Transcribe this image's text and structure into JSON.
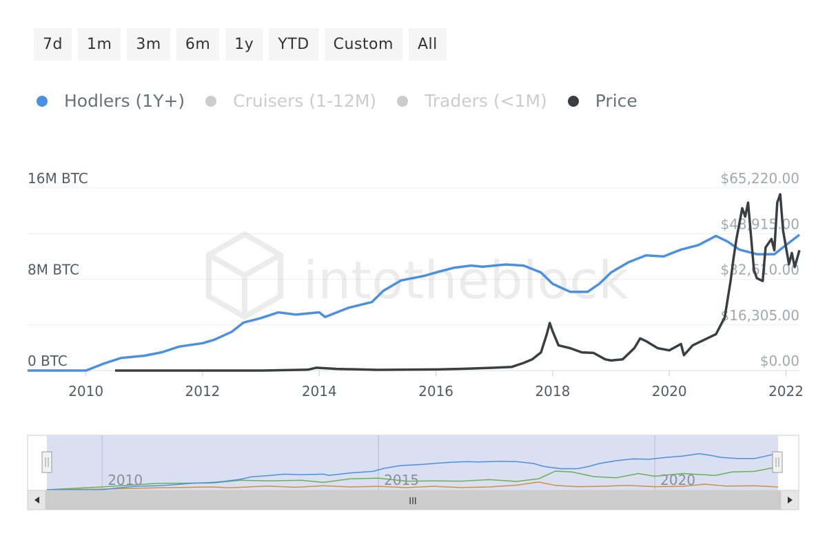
{
  "range_buttons": [
    "7d",
    "1m",
    "3m",
    "6m",
    "1y",
    "YTD",
    "Custom",
    "All"
  ],
  "legend": [
    {
      "label": "Hodlers (1Y+)",
      "color": "#4a90e2",
      "active": true
    },
    {
      "label": "Cruisers (1-12M)",
      "color": "#cccccc",
      "active": false
    },
    {
      "label": "Traders (<1M)",
      "color": "#cccccc",
      "active": false
    },
    {
      "label": "Price",
      "color": "#3a3d41",
      "active": true
    }
  ],
  "watermark": "intotheblock",
  "navigator": {
    "x_ticks": [
      "2010",
      "2015",
      "2020"
    ],
    "scroll_grip": "III",
    "colors": {
      "hodlers": "#4a90e2",
      "cruisers": "#6ab04c",
      "traders": "#d38e3b",
      "mask": "#d3d9ee"
    }
  },
  "chart_data": {
    "type": "line",
    "x_ticks": [
      "2010",
      "2012",
      "2014",
      "2016",
      "2018",
      "2020",
      "2022"
    ],
    "xlim": [
      2009.0,
      2022.23
    ],
    "left_axis": {
      "ticks": [
        "0 BTC",
        "8M BTC",
        "16M BTC"
      ],
      "ylim": [
        0,
        16000000
      ]
    },
    "right_axis": {
      "ticks": [
        "$0.00",
        "$16,305.00",
        "$32,610.00",
        "$48,915.00",
        "$65,220.00"
      ],
      "ylim": [
        0,
        65220
      ]
    },
    "series": [
      {
        "name": "Hodlers (1Y+)",
        "axis": "left",
        "color": "#4a90e2",
        "points": [
          [
            2009.0,
            0
          ],
          [
            2010.0,
            0
          ],
          [
            2010.3,
            600000
          ],
          [
            2010.6,
            1100000
          ],
          [
            2011.0,
            1300000
          ],
          [
            2011.3,
            1600000
          ],
          [
            2011.6,
            2100000
          ],
          [
            2012.0,
            2400000
          ],
          [
            2012.2,
            2700000
          ],
          [
            2012.5,
            3400000
          ],
          [
            2012.7,
            4200000
          ],
          [
            2013.0,
            4600000
          ],
          [
            2013.3,
            5100000
          ],
          [
            2013.6,
            4900000
          ],
          [
            2014.0,
            5100000
          ],
          [
            2014.1,
            4700000
          ],
          [
            2014.5,
            5500000
          ],
          [
            2014.9,
            6000000
          ],
          [
            2015.1,
            7000000
          ],
          [
            2015.4,
            7900000
          ],
          [
            2015.8,
            8300000
          ],
          [
            2016.0,
            8600000
          ],
          [
            2016.3,
            9000000
          ],
          [
            2016.6,
            9200000
          ],
          [
            2016.8,
            9100000
          ],
          [
            2017.2,
            9300000
          ],
          [
            2017.5,
            9200000
          ],
          [
            2017.8,
            8600000
          ],
          [
            2018.0,
            7600000
          ],
          [
            2018.3,
            6900000
          ],
          [
            2018.6,
            6900000
          ],
          [
            2018.8,
            7600000
          ],
          [
            2019.0,
            8600000
          ],
          [
            2019.3,
            9500000
          ],
          [
            2019.6,
            10100000
          ],
          [
            2019.9,
            10000000
          ],
          [
            2020.2,
            10600000
          ],
          [
            2020.5,
            11000000
          ],
          [
            2020.8,
            11800000
          ],
          [
            2021.0,
            11300000
          ],
          [
            2021.2,
            10600000
          ],
          [
            2021.5,
            10200000
          ],
          [
            2021.8,
            10200000
          ],
          [
            2022.0,
            11000000
          ],
          [
            2022.23,
            11900000
          ]
        ]
      },
      {
        "name": "Price",
        "axis": "right",
        "color": "#3a3d41",
        "points": [
          [
            2010.5,
            0
          ],
          [
            2013.0,
            10
          ],
          [
            2013.8,
            300
          ],
          [
            2013.95,
            1000
          ],
          [
            2014.3,
            600
          ],
          [
            2015.0,
            250
          ],
          [
            2016.0,
            400
          ],
          [
            2016.5,
            650
          ],
          [
            2017.0,
            1000
          ],
          [
            2017.3,
            1300
          ],
          [
            2017.5,
            2700
          ],
          [
            2017.65,
            4000
          ],
          [
            2017.8,
            6500
          ],
          [
            2017.9,
            13000
          ],
          [
            2017.95,
            17000
          ],
          [
            2018.0,
            14000
          ],
          [
            2018.1,
            9000
          ],
          [
            2018.3,
            8000
          ],
          [
            2018.5,
            6500
          ],
          [
            2018.7,
            6300
          ],
          [
            2018.9,
            4000
          ],
          [
            2019.0,
            3600
          ],
          [
            2019.2,
            4000
          ],
          [
            2019.4,
            8000
          ],
          [
            2019.5,
            11500
          ],
          [
            2019.6,
            10500
          ],
          [
            2019.8,
            8000
          ],
          [
            2020.0,
            7200
          ],
          [
            2020.2,
            9500
          ],
          [
            2020.25,
            5500
          ],
          [
            2020.4,
            9000
          ],
          [
            2020.6,
            11000
          ],
          [
            2020.8,
            13000
          ],
          [
            2020.95,
            19000
          ],
          [
            2021.05,
            32000
          ],
          [
            2021.1,
            40000
          ],
          [
            2021.15,
            47000
          ],
          [
            2021.25,
            58000
          ],
          [
            2021.3,
            55000
          ],
          [
            2021.35,
            60000
          ],
          [
            2021.45,
            36000
          ],
          [
            2021.5,
            33000
          ],
          [
            2021.6,
            32000
          ],
          [
            2021.65,
            44000
          ],
          [
            2021.75,
            47000
          ],
          [
            2021.8,
            43000
          ],
          [
            2021.85,
            60000
          ],
          [
            2021.9,
            63000
          ],
          [
            2021.95,
            50000
          ],
          [
            2022.05,
            38000
          ],
          [
            2022.1,
            42000
          ],
          [
            2022.15,
            37000
          ],
          [
            2022.23,
            43000
          ]
        ]
      }
    ]
  }
}
